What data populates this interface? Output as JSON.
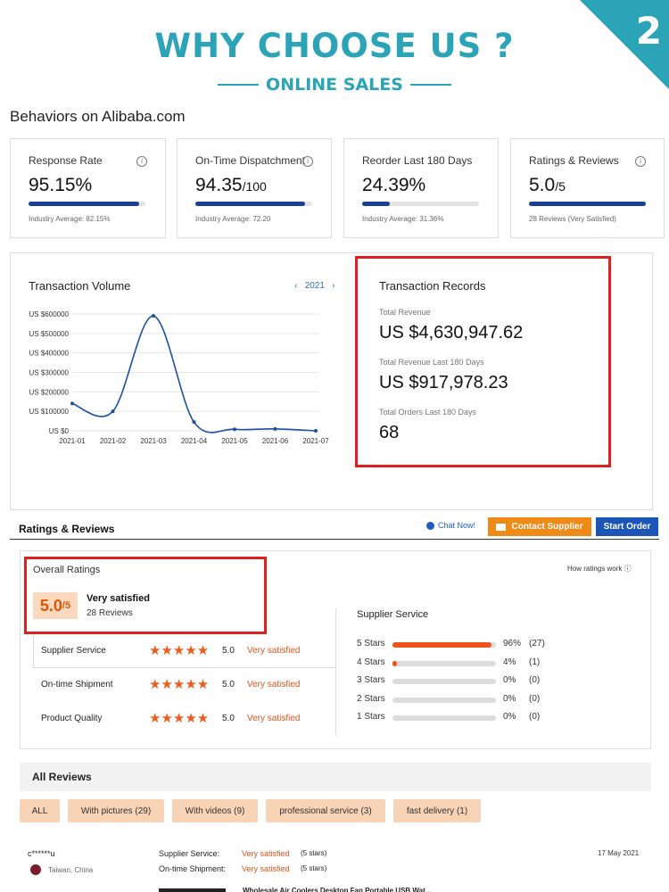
{
  "banner": {
    "badge_number": "2",
    "title": "WHY CHOOSE US ?",
    "subtitle": "ONLINE SALES",
    "accent_color": "#2aa4b6"
  },
  "behaviors": {
    "title": "Behaviors on Alibaba.com",
    "cards": [
      {
        "label": "Response Rate",
        "value": "95.15%",
        "suffix": "",
        "progress": 0.95,
        "average": "Industry Average: 82.15%"
      },
      {
        "label": "On-Time Dispatchment",
        "value": "94.35",
        "suffix": "/100",
        "progress": 0.94,
        "average": "Industry Average: 72.20"
      },
      {
        "label": "Reorder Last 180 Days",
        "value": "24.39%",
        "suffix": "",
        "progress": 0.24,
        "average": "Industry Average: 31.36%"
      },
      {
        "label": "Ratings & Reviews",
        "value": "5.0",
        "suffix": "/5",
        "progress": 1.0,
        "average": "28 Reviews (Very Satisfied)"
      }
    ]
  },
  "transaction_volume": {
    "title": "Transaction Volume",
    "prev_icon": "chevron-left-icon",
    "year": "2021",
    "next_icon": "chevron-right-icon"
  },
  "chart_data": {
    "type": "line",
    "title": "Transaction Volume",
    "xlabel": "",
    "ylabel": "",
    "x": [
      "2021-01",
      "2021-02",
      "2021-03",
      "2021-04",
      "2021-05",
      "2021-06",
      "2021-07"
    ],
    "y_tick_labels": [
      "US $0",
      "US $100000",
      "US $200000",
      "US $300000",
      "US $400000",
      "US $500000",
      "US $600000"
    ],
    "ylim": [
      0,
      600000
    ],
    "series": [
      {
        "values": [
          140000,
          100000,
          590000,
          45000,
          8000,
          10000,
          0
        ]
      }
    ],
    "grid": true,
    "line_color": "#1b4fa0"
  },
  "transaction_records": {
    "title": "Transaction Records",
    "total_revenue_label": "Total Revenue",
    "total_revenue": "US $4,630,947.62",
    "revenue_180_label": "Total Revenue Last 180 Days",
    "revenue_180": "US $917,978.23",
    "orders_180_label": "Total Orders Last 180 Days",
    "orders_180": "68"
  },
  "ratings_reviews": {
    "title": "Ratings & Reviews",
    "chat_now": "Chat Now!",
    "contact_supplier": "Contact Supplier",
    "start_order": "Start Order",
    "overall_label": "Overall Ratings",
    "overall_score": "5.0",
    "overall_scale": "/5",
    "overall_text": "Very satisfied",
    "overall_count": "28 Reviews",
    "how_ratings_work": "How ratings work",
    "categories": [
      {
        "name": "Supplier Service",
        "stars": "★★★★★",
        "score": "5.0",
        "text": "Very satisfied"
      },
      {
        "name": "On-time Shipment",
        "stars": "★★★★★",
        "score": "5.0",
        "text": "Very satisfied"
      },
      {
        "name": "Product Quality",
        "stars": "★★★★★",
        "score": "5.0",
        "text": "Very satisfied"
      }
    ],
    "supplier_service_title": "Supplier Service",
    "distribution": [
      {
        "label": "5 Stars",
        "percent": "96%",
        "count": "(27)",
        "fraction": 0.96
      },
      {
        "label": "4 Stars",
        "percent": "4%",
        "count": "(1)",
        "fraction": 0.04
      },
      {
        "label": "3 Stars",
        "percent": "0%",
        "count": "(0)",
        "fraction": 0
      },
      {
        "label": "2 Stars",
        "percent": "0%",
        "count": "(0)",
        "fraction": 0
      },
      {
        "label": "1 Stars",
        "percent": "0%",
        "count": "(0)",
        "fraction": 0
      }
    ]
  },
  "all_reviews": {
    "title": "All Reviews",
    "filters": [
      "ALL",
      "With pictures (29)",
      "With videos (9)",
      "professional service (3)",
      "fast delivery (1)"
    ],
    "review": {
      "user": "c******u",
      "location": "Taiwan, China",
      "supplier_service_label": "Supplier Service:",
      "supplier_service_value": "Very satisfied",
      "supplier_service_stars": "(5 stars)",
      "shipment_label": "On-time Shipment:",
      "shipment_value": "Very satisfied",
      "shipment_stars": "(5 stars)",
      "date": "17 May 2021",
      "product": "Wholesale Air Coolers Desktop Fan Portable USB Wat..."
    }
  }
}
